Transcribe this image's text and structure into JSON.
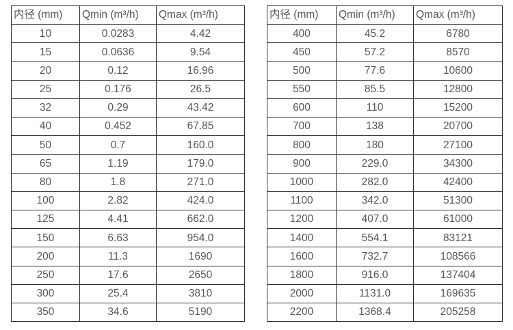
{
  "colors": {
    "table_border": "#2f2f2f",
    "text": "#555555",
    "background": "#ffffff"
  },
  "tables": [
    {
      "name": "small-diameter-flow-ranges",
      "headers": [
        "内径 (mm)",
        "Qmin (m³/h)",
        "Qmax (m³/h)"
      ],
      "rows": [
        [
          "10",
          "0.0283",
          "4.42"
        ],
        [
          "15",
          "0.0636",
          "9.54"
        ],
        [
          "20",
          "0.12",
          "16.96"
        ],
        [
          "25",
          "0.176",
          "26.5"
        ],
        [
          "32",
          "0.29",
          "43.42"
        ],
        [
          "40",
          "0.452",
          "67.85"
        ],
        [
          "50",
          "0.7",
          "160.0"
        ],
        [
          "65",
          "1.19",
          "179.0"
        ],
        [
          "80",
          "1.8",
          "271.0"
        ],
        [
          "100",
          "2.82",
          "424.0"
        ],
        [
          "125",
          "4.41",
          "662.0"
        ],
        [
          "150",
          "6.63",
          "954.0"
        ],
        [
          "200",
          "11.3",
          "1690"
        ],
        [
          "250",
          "17.6",
          "2650"
        ],
        [
          "300",
          "25.4",
          "3810"
        ],
        [
          "350",
          "34.6",
          "5190"
        ]
      ]
    },
    {
      "name": "large-diameter-flow-ranges",
      "headers": [
        "内径 (mm)",
        "Qmin (m³/h)",
        "Qmax (m³/h)"
      ],
      "rows": [
        [
          "400",
          "45.2",
          "6780"
        ],
        [
          "450",
          "57.2",
          "8570"
        ],
        [
          "500",
          "77.6",
          "10600"
        ],
        [
          "550",
          "85.5",
          "12800"
        ],
        [
          "600",
          "110",
          "15200"
        ],
        [
          "700",
          "138",
          "20700"
        ],
        [
          "800",
          "180",
          "27100"
        ],
        [
          "900",
          "229.0",
          "34300"
        ],
        [
          "1000",
          "282.0",
          "42400"
        ],
        [
          "1100",
          "342.0",
          "51300"
        ],
        [
          "1200",
          "407.0",
          "61000"
        ],
        [
          "1400",
          "554.1",
          "83121"
        ],
        [
          "1600",
          "732.7",
          "108566"
        ],
        [
          "1800",
          "916.0",
          "137404"
        ],
        [
          "2000",
          "1131.0",
          "169635"
        ],
        [
          "2200",
          "1368.4",
          "205258"
        ]
      ]
    }
  ]
}
